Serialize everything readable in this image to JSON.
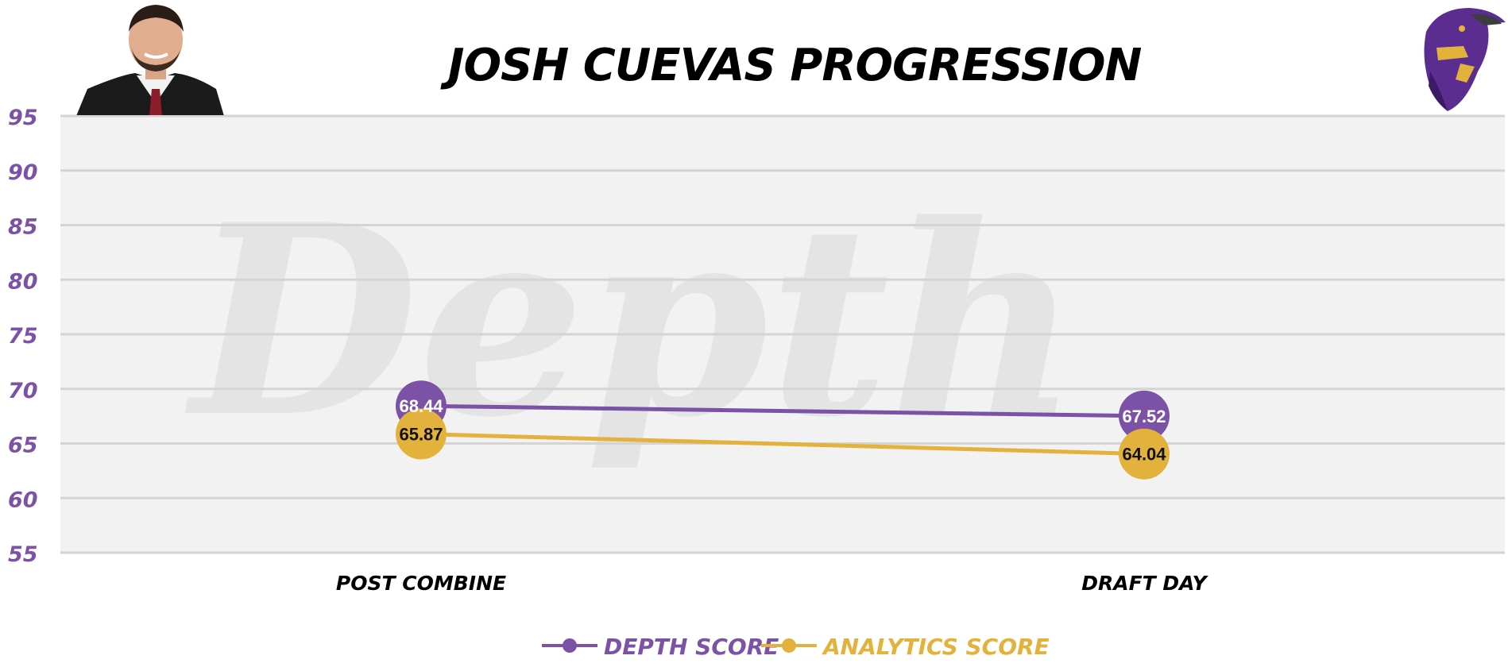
{
  "colors": {
    "depth": "#7B52A6",
    "analytics": "#E3B23C",
    "plot_bg": "#F2F2F2",
    "grid": "#D4D4D4",
    "tick_y": "#7B52A6",
    "watermark": "#E4E4E4"
  },
  "icons": {
    "player": "player-headshot",
    "team": "raven-logo"
  },
  "watermark_text": "Depth",
  "chart_data": {
    "type": "line",
    "title": "JOSH CUEVAS PROGRESSION",
    "categories": [
      "POST COMBINE",
      "DRAFT DAY"
    ],
    "ylim": [
      55,
      95
    ],
    "yticks": [
      95,
      90,
      85,
      80,
      75,
      70,
      65,
      60,
      55
    ],
    "grid": true,
    "legend_position": "bottom-center",
    "series": [
      {
        "name": "DEPTH SCORE",
        "values": [
          68.44,
          67.52
        ],
        "labels": [
          "68.44",
          "67.52"
        ],
        "label_color": "#FFFFFF"
      },
      {
        "name": "ANALYTICS SCORE",
        "values": [
          65.87,
          64.04
        ],
        "labels": [
          "65.87",
          "64.04"
        ],
        "label_color": "#111111"
      }
    ]
  }
}
